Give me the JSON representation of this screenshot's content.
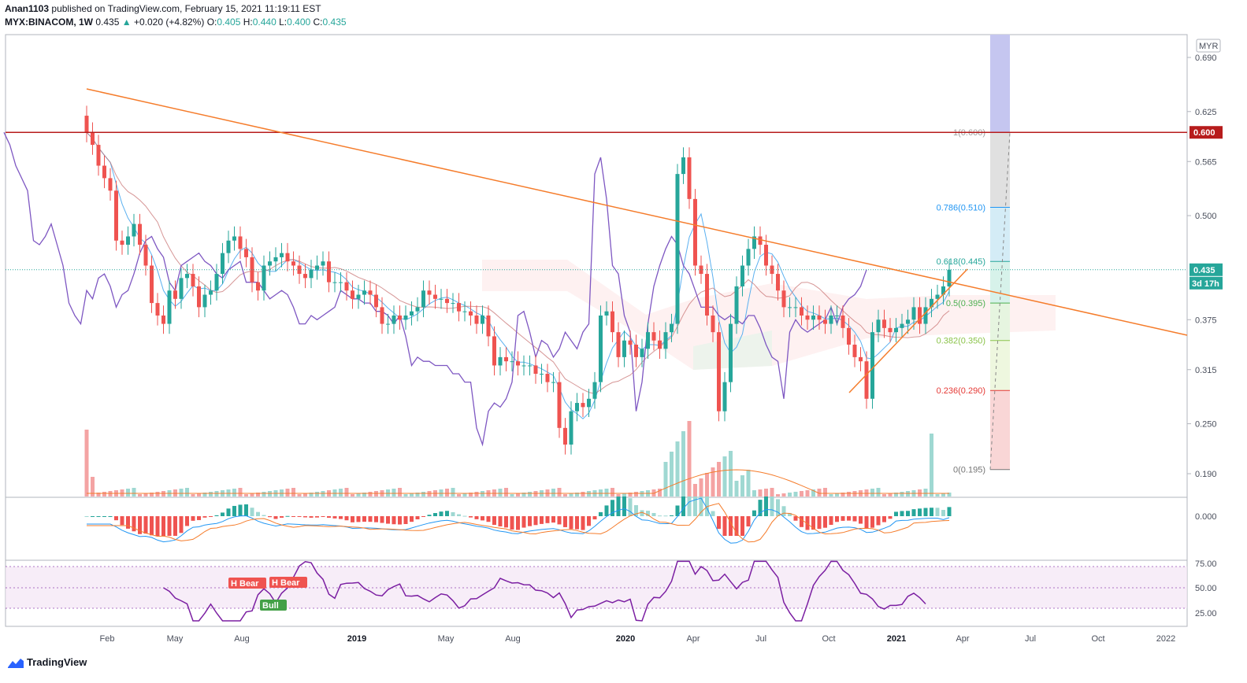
{
  "header": {
    "publisher": "Anan1103",
    "published_text": "published on TradingView.com, February 15, 2021 11:19:11 EST",
    "symbol": "MYX:BINACOM, 1W",
    "last": "0.435",
    "arrow": "▲",
    "change": "+0.020 (+4.82%)",
    "o_label": "O:",
    "o_val": "0.405",
    "h_label": "H:",
    "h_val": "0.440",
    "l_label": "L:",
    "l_val": "0.400",
    "c_label": "C:",
    "c_val": "0.435"
  },
  "branding": {
    "name": "TradingView"
  },
  "colors": {
    "up": "#26a69a",
    "down": "#ef5350",
    "resistance": "#b71c1c",
    "trend": "#f57c2b",
    "volume_up": "#9fd8d2",
    "volume_down": "#f4a3a3",
    "rsi": "#7b1fa2",
    "macd": "#2196f3",
    "signal": "#f57c2b",
    "lagging": "#7e57c2",
    "accent": "#2962ff"
  },
  "chart_data": {
    "type": "candlestick",
    "currency": "MYR",
    "y_ticks": [
      "0.690",
      "0.625",
      "0.565",
      "0.500",
      "0.435",
      "0.375",
      "0.315",
      "0.250",
      "0.190"
    ],
    "x_ticks": [
      {
        "label": "Feb",
        "bold": false
      },
      {
        "label": "May",
        "bold": false
      },
      {
        "label": "Aug",
        "bold": false
      },
      {
        "label": "2019",
        "bold": true
      },
      {
        "label": "May",
        "bold": false
      },
      {
        "label": "Aug",
        "bold": false
      },
      {
        "label": "2020",
        "bold": true
      },
      {
        "label": "Apr",
        "bold": false
      },
      {
        "label": "Jul",
        "bold": false
      },
      {
        "label": "Oct",
        "bold": false
      },
      {
        "label": "2021",
        "bold": true
      },
      {
        "label": "Apr",
        "bold": false
      },
      {
        "label": "Jul",
        "bold": false
      },
      {
        "label": "Oct",
        "bold": false
      },
      {
        "label": "2022",
        "bold": false
      }
    ],
    "price_close": [
      0.6,
      0.585,
      0.56,
      0.545,
      0.53,
      0.47,
      0.465,
      0.475,
      0.49,
      0.465,
      0.44,
      0.395,
      0.38,
      0.37,
      0.41,
      0.4,
      0.425,
      0.43,
      0.415,
      0.39,
      0.405,
      0.41,
      0.43,
      0.455,
      0.47,
      0.475,
      0.46,
      0.45,
      0.42,
      0.41,
      0.44,
      0.445,
      0.45,
      0.455,
      0.445,
      0.44,
      0.43,
      0.425,
      0.435,
      0.44,
      0.445,
      0.42,
      0.42,
      0.42,
      0.41,
      0.4,
      0.405,
      0.41,
      0.405,
      0.39,
      0.37,
      0.37,
      0.38,
      0.375,
      0.38,
      0.385,
      0.39,
      0.41,
      0.405,
      0.4,
      0.4,
      0.395,
      0.395,
      0.385,
      0.385,
      0.38,
      0.37,
      0.38,
      0.355,
      0.32,
      0.33,
      0.325,
      0.325,
      0.32,
      0.32,
      0.32,
      0.31,
      0.31,
      0.3,
      0.3,
      0.245,
      0.225,
      0.265,
      0.275,
      0.27,
      0.28,
      0.3,
      0.38,
      0.385,
      0.36,
      0.33,
      0.35,
      0.345,
      0.33,
      0.34,
      0.36,
      0.35,
      0.34,
      0.36,
      0.37,
      0.55,
      0.57,
      0.52,
      0.44,
      0.43,
      0.38,
      0.36,
      0.265,
      0.3,
      0.37,
      0.415,
      0.44,
      0.46,
      0.475,
      0.465,
      0.44,
      0.43,
      0.41,
      0.39,
      0.39,
      0.39,
      0.38,
      0.375,
      0.38,
      0.375,
      0.37,
      0.38,
      0.38,
      0.365,
      0.345,
      0.33,
      0.325,
      0.28,
      0.36,
      0.375,
      0.365,
      0.36,
      0.365,
      0.37,
      0.375,
      0.39,
      0.37,
      0.39,
      0.4,
      0.405,
      0.415,
      0.435
    ],
    "resistance": 0.6,
    "current_price": 0.435,
    "countdown": "3d 17h",
    "fib_levels": [
      {
        "label": "1(0.600)",
        "value": 0.6,
        "color": "#9e9e9e"
      },
      {
        "label": "0.786(0.510)",
        "value": 0.51,
        "color": "#2196f3"
      },
      {
        "label": "0.618(0.445)",
        "value": 0.445,
        "color": "#26a69a"
      },
      {
        "label": "0.5(0.395)",
        "value": 0.395,
        "color": "#4caf50"
      },
      {
        "label": "0.382(0.350)",
        "value": 0.35,
        "color": "#8bc34a"
      },
      {
        "label": "0.236(0.290)",
        "value": 0.29,
        "color": "#e53935"
      },
      {
        "label": "0(0.195)",
        "value": 0.195,
        "color": "#757575"
      }
    ],
    "macd_ticks": [
      "0.000"
    ],
    "rsi_ticks": [
      "75.00",
      "50.00",
      "25.00"
    ],
    "rsi_labels": [
      {
        "text": "H Bear",
        "kind": "bear"
      },
      {
        "text": "H Bear",
        "kind": "bear"
      },
      {
        "text": "Bull",
        "kind": "bull"
      }
    ]
  }
}
